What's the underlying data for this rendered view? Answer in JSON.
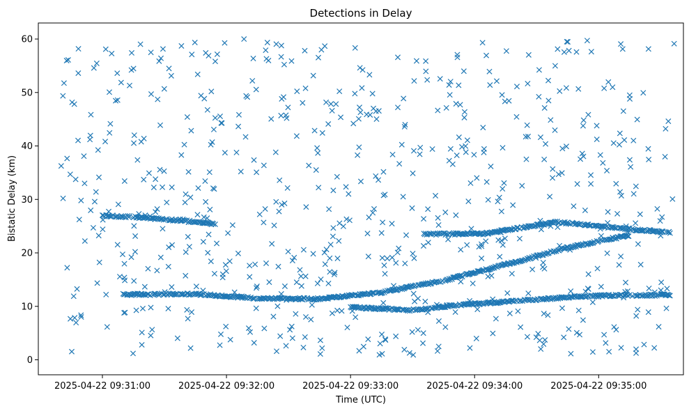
{
  "chart_data": {
    "type": "scatter",
    "title": "Detections in Delay",
    "xlabel": "Time (UTC)",
    "ylabel": "Bistatic Delay (km)",
    "marker": "x",
    "color": "#1f77b4",
    "grid": false,
    "xlim": [
      "2025-04-22 09:30:29",
      "2025-04-22 09:35:41"
    ],
    "ylim": [
      -2.8,
      63
    ],
    "x_ticks": [
      "2025-04-22 09:31:00",
      "2025-04-22 09:32:00",
      "2025-04-22 09:33:00",
      "2025-04-22 09:34:00",
      "2025-04-22 09:35:00"
    ],
    "y_ticks": [
      0,
      10,
      20,
      30,
      40,
      50,
      60
    ],
    "tracks": [
      {
        "description": "main curved track",
        "points": [
          [
            "2025-04-22 09:31:10",
            12.2
          ],
          [
            "2025-04-22 09:31:45",
            12.3
          ],
          [
            "2025-04-22 09:32:15",
            11.5
          ],
          [
            "2025-04-22 09:32:45",
            11.4
          ],
          [
            "2025-04-22 09:33:15",
            12.6
          ],
          [
            "2025-04-22 09:33:45",
            14.8
          ],
          [
            "2025-04-22 09:34:15",
            17.8
          ],
          [
            "2025-04-22 09:34:45",
            21.0
          ],
          [
            "2025-04-22 09:35:15",
            23.3
          ]
        ]
      },
      {
        "description": "upper descending track",
        "points": [
          [
            "2025-04-22 09:31:00",
            27.0
          ],
          [
            "2025-04-22 09:31:20",
            26.6
          ],
          [
            "2025-04-22 09:31:40",
            26.0
          ],
          [
            "2025-04-22 09:31:55",
            25.4
          ]
        ]
      },
      {
        "description": "flat track near 23.5",
        "points": [
          [
            "2025-04-22 09:33:35",
            23.5
          ],
          [
            "2025-04-22 09:34:05",
            23.6
          ],
          [
            "2025-04-22 09:34:40",
            25.8
          ],
          [
            "2025-04-22 09:35:10",
            24.6
          ],
          [
            "2025-04-22 09:35:35",
            23.8
          ]
        ]
      },
      {
        "description": "lower track",
        "points": [
          [
            "2025-04-22 09:33:00",
            9.8
          ],
          [
            "2025-04-22 09:33:30",
            9.3
          ],
          [
            "2025-04-22 09:33:50",
            10.2
          ],
          [
            "2025-04-22 09:34:20",
            11.0
          ],
          [
            "2025-04-22 09:34:50",
            11.8
          ],
          [
            "2025-04-22 09:35:10",
            12.1
          ],
          [
            "2025-04-22 09:35:35",
            12.1
          ]
        ]
      }
    ],
    "scattered_points_note": "approximately 700 additional uniformly distributed clutter detections between 0 and 60 km across the full time range"
  }
}
